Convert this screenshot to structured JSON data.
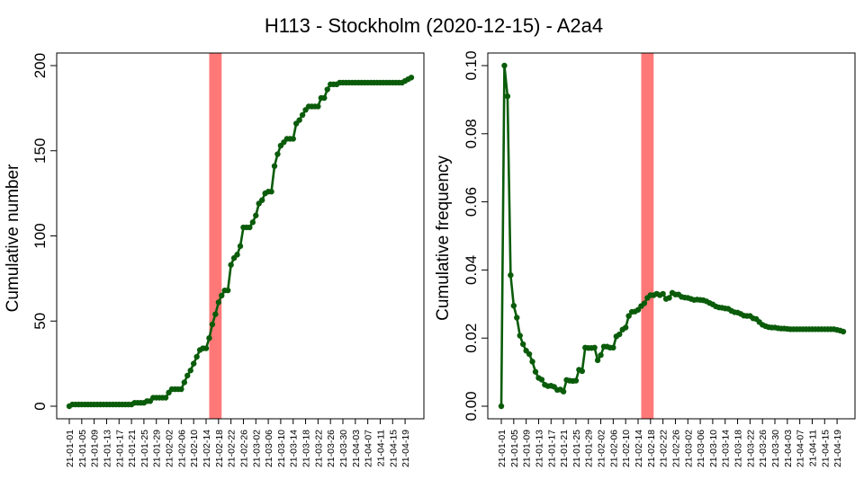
{
  "title": "H113 - Stockholm (2020-12-15) - A2a4",
  "colors": {
    "line": "#0a5c0a",
    "highlight": "#ff7878",
    "axis": "#000000",
    "background": "#ffffff"
  },
  "x_tick_labels": [
    "21-01-01",
    "21-01-05",
    "21-01-09",
    "21-01-13",
    "21-01-17",
    "21-01-21",
    "21-01-25",
    "21-01-29",
    "21-02-02",
    "21-02-06",
    "21-02-10",
    "21-02-14",
    "21-02-18",
    "21-02-22",
    "21-02-26",
    "21-03-02",
    "21-03-06",
    "21-03-10",
    "21-03-14",
    "21-03-18",
    "21-03-22",
    "21-03-26",
    "21-03-30",
    "21-04-03",
    "21-04-07",
    "21-04-11",
    "21-04-15",
    "21-04-19"
  ],
  "chart_data": [
    {
      "type": "line",
      "ylabel": "Cumulative number",
      "xlabel": "",
      "x_start": "2021-01-01",
      "x_end": "2021-04-21",
      "xlim": [
        0,
        110
      ],
      "ylim": [
        0,
        200
      ],
      "yticks": [
        0,
        50,
        100,
        150,
        200
      ],
      "highlight_range": [
        "2021-02-15",
        "2021-02-19"
      ],
      "values": [
        0,
        1,
        1,
        1,
        1,
        1,
        1,
        1,
        1,
        1,
        1,
        1,
        1,
        1,
        1,
        1,
        1,
        1,
        1,
        1,
        1,
        2,
        2,
        2,
        2,
        3,
        3,
        5,
        5,
        5,
        5,
        5,
        8,
        10,
        10,
        10,
        10,
        14,
        18,
        21,
        25,
        29,
        33,
        34,
        34,
        40,
        48,
        54,
        61,
        65,
        68,
        68,
        83,
        87,
        89,
        94,
        105,
        105,
        105,
        108,
        112,
        119,
        121,
        125,
        126,
        126,
        141,
        148,
        153,
        155,
        157,
        157,
        157,
        166,
        168,
        171,
        174,
        176,
        176,
        176,
        176,
        181,
        181,
        186,
        189,
        189,
        189,
        190,
        190,
        190,
        190,
        190,
        190,
        190,
        190,
        190,
        190,
        190,
        190,
        190,
        190,
        190,
        190,
        190,
        190,
        190,
        190,
        190,
        191,
        192,
        193
      ]
    },
    {
      "type": "line",
      "ylabel": "Cumulative frequency",
      "xlabel": "",
      "x_start": "2021-01-01",
      "x_end": "2021-04-21",
      "xlim": [
        0,
        110
      ],
      "ylim": [
        0,
        0.1
      ],
      "yticks": [
        "0.00",
        "0.02",
        "0.04",
        "0.06",
        "0.08",
        "0.10"
      ],
      "highlight_range": [
        "2021-02-15",
        "2021-02-19"
      ],
      "values": [
        0.0,
        0.1,
        0.091,
        0.0385,
        0.0295,
        0.026,
        0.0207,
        0.0182,
        0.0163,
        0.0153,
        0.0131,
        0.0101,
        0.0083,
        0.0078,
        0.0063,
        0.0059,
        0.006,
        0.0057,
        0.0048,
        0.0049,
        0.0043,
        0.0077,
        0.0075,
        0.0074,
        0.0075,
        0.0107,
        0.0103,
        0.0172,
        0.0171,
        0.0171,
        0.0172,
        0.0135,
        0.015,
        0.0175,
        0.0175,
        0.0172,
        0.0172,
        0.0205,
        0.0211,
        0.0225,
        0.0231,
        0.0265,
        0.0277,
        0.0278,
        0.0283,
        0.0294,
        0.0302,
        0.0318,
        0.0326,
        0.0326,
        0.033,
        0.0326,
        0.033,
        0.0315,
        0.0318,
        0.0333,
        0.0328,
        0.0328,
        0.0321,
        0.0319,
        0.0318,
        0.0315,
        0.0312,
        0.0313,
        0.0312,
        0.0311,
        0.0308,
        0.0303,
        0.0299,
        0.0293,
        0.029,
        0.0289,
        0.0287,
        0.0286,
        0.028,
        0.0276,
        0.0275,
        0.0271,
        0.0266,
        0.0265,
        0.0265,
        0.0258,
        0.0256,
        0.0247,
        0.0239,
        0.0235,
        0.0232,
        0.0231,
        0.0231,
        0.0229,
        0.0228,
        0.0228,
        0.0227,
        0.0226,
        0.0226,
        0.0226,
        0.0226,
        0.0226,
        0.0226,
        0.0226,
        0.0226,
        0.0226,
        0.0226,
        0.0226,
        0.0226,
        0.0226,
        0.0226,
        0.0226,
        0.0224,
        0.0222,
        0.0219
      ]
    }
  ]
}
